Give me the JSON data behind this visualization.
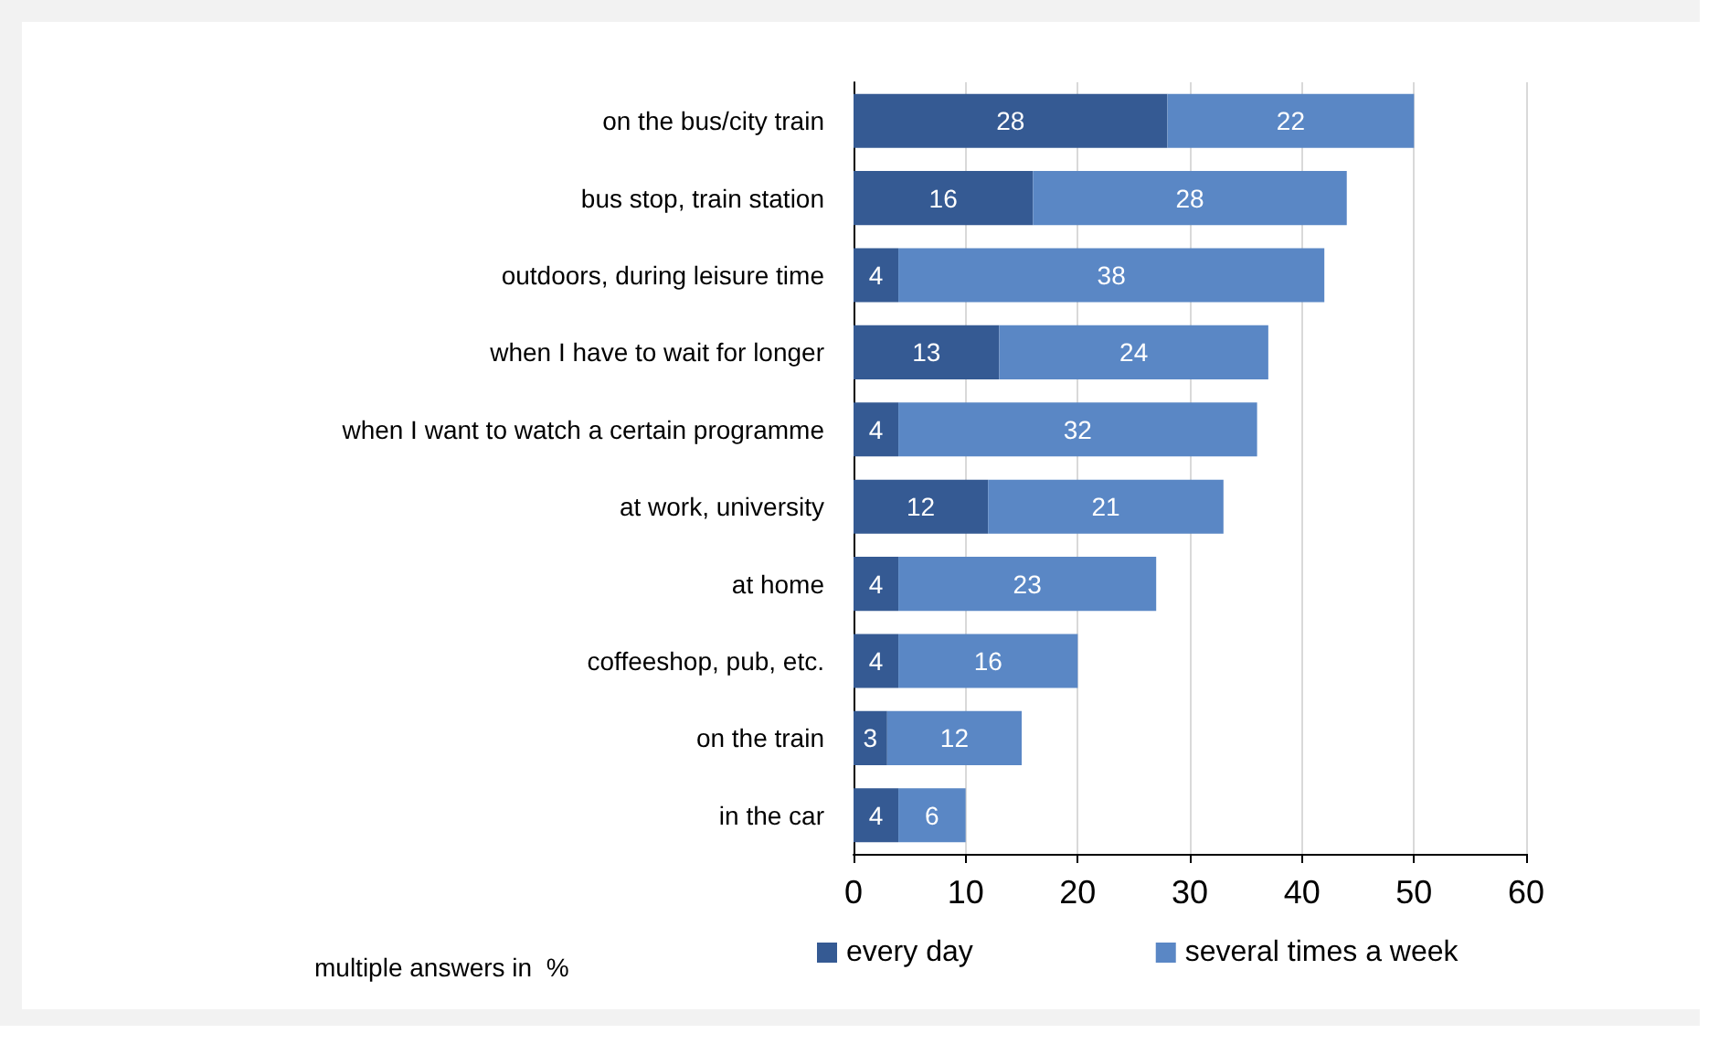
{
  "chart_data": {
    "type": "bar",
    "orientation": "horizontal",
    "stacked": true,
    "categories": [
      "on the bus/city train",
      "bus stop, train station",
      "outdoors, during leisure time",
      "when I have to wait for longer",
      "when I want to watch a certain programme",
      "at work, university",
      "at home",
      "coffeeshop, pub, etc.",
      "on the train",
      "in the car"
    ],
    "series": [
      {
        "name": "every day",
        "color": "#355a93",
        "values": [
          28,
          16,
          4,
          13,
          4,
          12,
          4,
          4,
          3,
          4
        ]
      },
      {
        "name": "several times a week",
        "color": "#5a87c5",
        "values": [
          22,
          28,
          38,
          24,
          32,
          21,
          23,
          16,
          12,
          6
        ]
      }
    ],
    "xlim": [
      0,
      60
    ],
    "xticks": [
      0,
      10,
      20,
      30,
      40,
      50,
      60
    ],
    "grid": "x",
    "legend": "bottom",
    "data_labels": true,
    "annotations": [
      "multiple answers in  %"
    ]
  }
}
